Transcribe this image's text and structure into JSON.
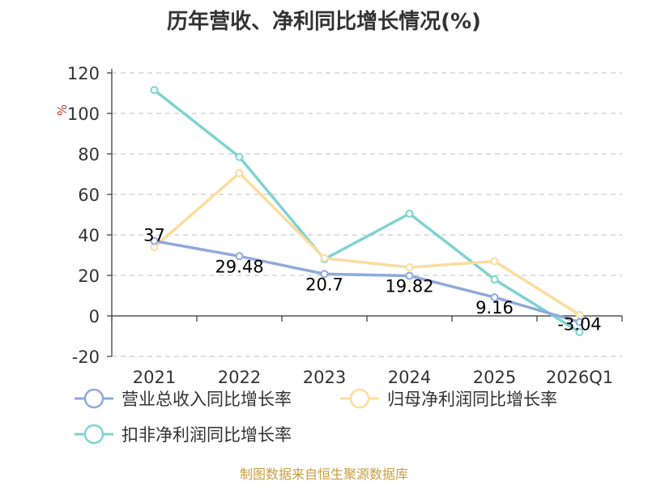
{
  "title": "历年营收、净利同比增长情况(%)",
  "source": "制图数据来自恒生聚源数据库",
  "chart_data": {
    "type": "line",
    "title": "历年营收、净利同比增长情况(%)",
    "categories": [
      "2021",
      "2022",
      "2023",
      "2024",
      "2025",
      "2026Q1"
    ],
    "ylabel": "%",
    "ylim": [
      -20,
      120
    ],
    "yticks": [
      120,
      100,
      80,
      60,
      40,
      20,
      0,
      -20
    ],
    "grid": true,
    "legend_position": "bottom",
    "series": [
      {
        "name": "营业总收入同比增长率",
        "color": "#8eaadb",
        "values": [
          37,
          29.48,
          20.7,
          19.82,
          9.16,
          -3.04
        ],
        "labels": [
          "37",
          "29.48",
          "20.7",
          "19.82",
          "9.16",
          "-3.04"
        ]
      },
      {
        "name": "归母净利润同比增长率",
        "color": "#fcdc9e",
        "values": [
          34,
          70.5,
          28.5,
          24,
          27,
          0.5
        ]
      },
      {
        "name": "扣非净利润同比增长率",
        "color": "#7ed3d2",
        "values": [
          111.5,
          78.5,
          28,
          50.5,
          18,
          -8
        ]
      }
    ]
  }
}
